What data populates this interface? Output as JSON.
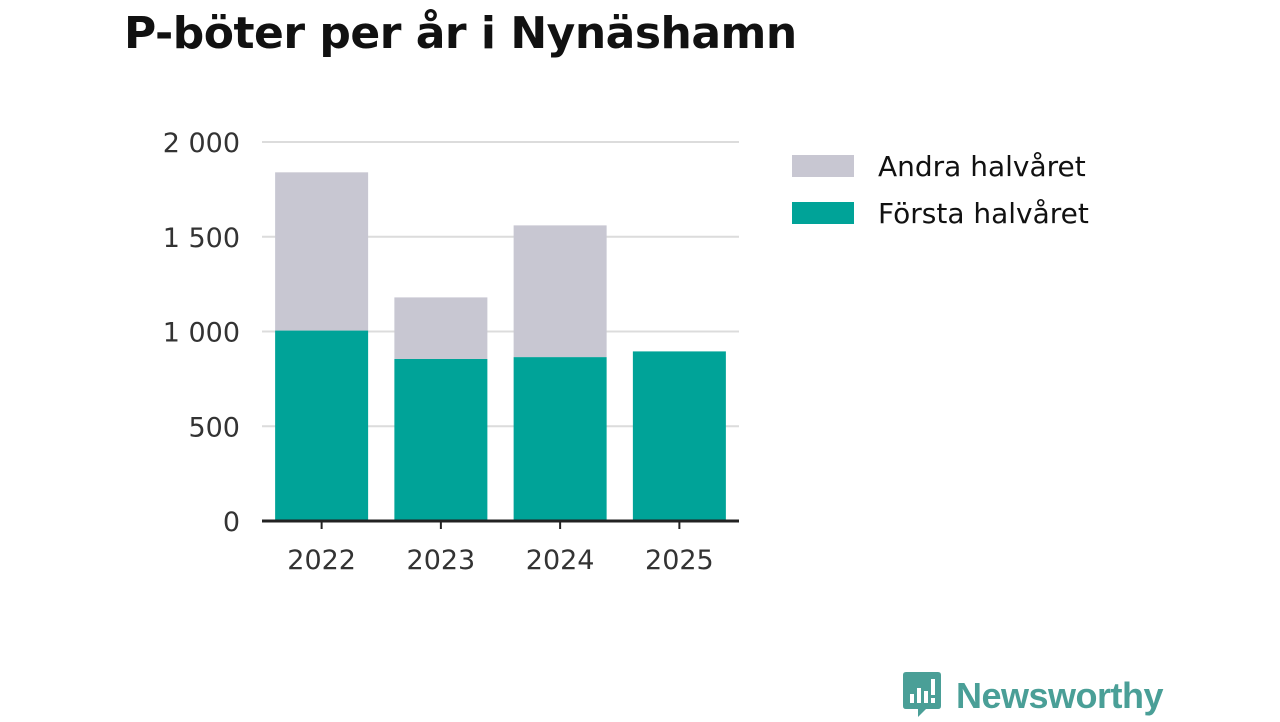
{
  "chart_data": {
    "type": "bar",
    "stacked": true,
    "title": "P-böter per år i Nynäshamn",
    "xlabel": "",
    "ylabel": "",
    "categories": [
      "2022",
      "2023",
      "2024",
      "2025"
    ],
    "series": [
      {
        "name": "Första halvåret",
        "values": [
          1005,
          855,
          865,
          895
        ],
        "color": "#00a398"
      },
      {
        "name": "Andra halvåret",
        "values": [
          835,
          325,
          695,
          0
        ],
        "color": "#c8c7d2"
      }
    ],
    "ylim": [
      0,
      2000
    ],
    "yticks": [
      0,
      500,
      1000,
      1500,
      2000
    ],
    "ytick_labels": [
      "0",
      "500",
      "1 000",
      "1 500",
      "2 000"
    ],
    "grid": true,
    "legend_placement": "right",
    "legend_order": [
      "Andra halvåret",
      "Första halvåret"
    ]
  },
  "branding": {
    "name": "Newsworthy",
    "color": "#4a9f97"
  }
}
